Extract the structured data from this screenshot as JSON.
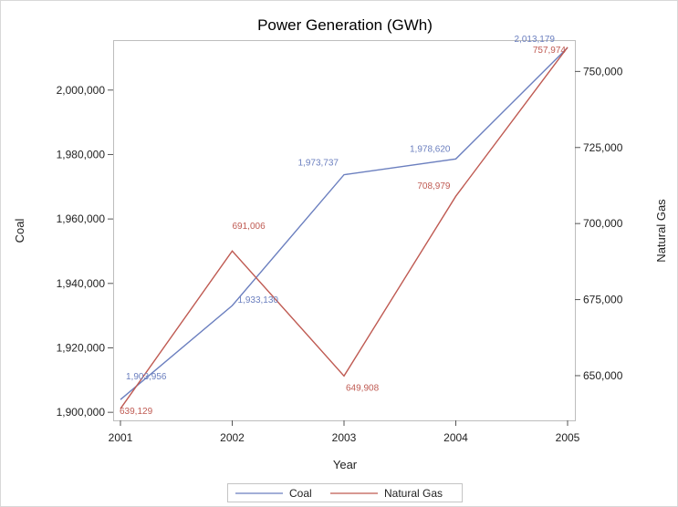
{
  "chart_data": {
    "type": "line",
    "title": "Power Generation (GWh)",
    "xlabel": "Year",
    "ylabel_left": "Coal",
    "ylabel_right": "Natural Gas",
    "x": [
      2001,
      2002,
      2003,
      2004,
      2005
    ],
    "x_tick_labels": [
      "2001",
      "2002",
      "2003",
      "2004",
      "2005"
    ],
    "left_axis": {
      "ylim": [
        1897500,
        2015500
      ],
      "ticks": [
        1900000,
        1920000,
        1940000,
        1960000,
        1980000,
        2000000
      ],
      "tick_labels": [
        "1,900,000",
        "1,920,000",
        "1,940,000",
        "1,960,000",
        "1,980,000",
        "2,000,000"
      ]
    },
    "right_axis": {
      "ylim": [
        635300,
        760300
      ],
      "ticks": [
        650000,
        675000,
        700000,
        725000,
        750000
      ],
      "tick_labels": [
        "650,000",
        "675,000",
        "700,000",
        "725,000",
        "750,000"
      ]
    },
    "series": [
      {
        "name": "Coal",
        "axis": "left",
        "color": "#6b7fbf",
        "values": [
          1903956,
          1933130,
          1973737,
          1978620,
          2013179
        ],
        "labels": [
          "1,903,956",
          "1,933,130",
          "1,973,737",
          "1,978,620",
          "2,013,179"
        ]
      },
      {
        "name": "Natural Gas",
        "axis": "right",
        "color": "#bf5a52",
        "values": [
          639129,
          691006,
          649908,
          708979,
          757974
        ],
        "labels": [
          "639,129",
          "691,006",
          "649,908",
          "708,979",
          "757,974"
        ]
      }
    ],
    "legend": [
      "Coal",
      "Natural Gas"
    ],
    "legend_position": "bottom-center",
    "grid": false
  }
}
